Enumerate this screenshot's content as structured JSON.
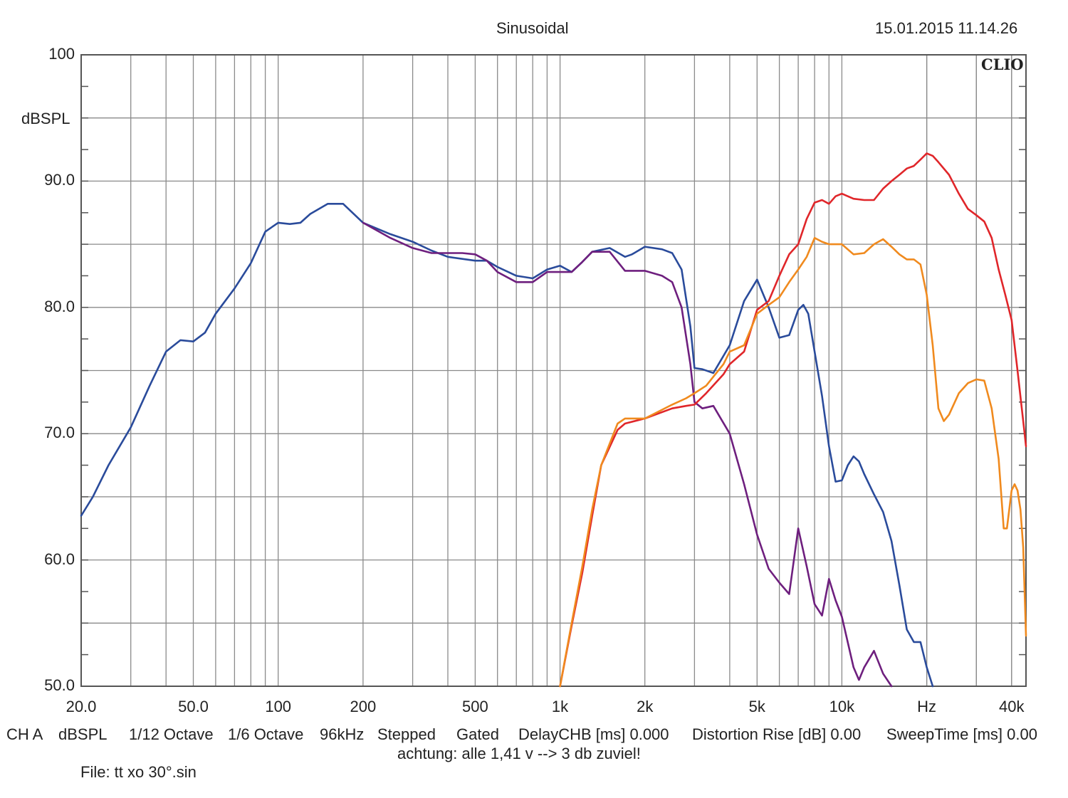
{
  "header": {
    "title": "Sinusoidal",
    "timestamp": "15.01.2015 11.14.26"
  },
  "logo_text": "CLIO",
  "ylabel": "dBSPL",
  "y_tick_labels": [
    "100",
    "90.0",
    "80.0",
    "70.0",
    "60.0",
    "50.0"
  ],
  "x_tick_labels": [
    "20.0",
    "50.0",
    "100",
    "200",
    "500",
    "1k",
    "2k",
    "5k",
    "10k",
    "Hz",
    "40k"
  ],
  "footer": {
    "channel": "CH A",
    "unit": "dBSPL",
    "smoothing1": "1/12 Octave",
    "smoothing2": "1/6 Octave",
    "rate": "96kHz",
    "mode": "Stepped",
    "gating": "Gated",
    "delay": "DelayCHB [ms] 0.000",
    "distortion": "Distortion Rise [dB] 0.00",
    "sweep": "SweepTime [ms] 0.00",
    "note": "achtung: alle 1,41 v --> 3 db zuviel!",
    "file": "File: tt xo 30°.sin"
  },
  "colors": {
    "blue": "#2a4b9b",
    "purple": "#6e1f7e",
    "red": "#e0262a",
    "orange": "#f08a1e",
    "grid": "#8a8a8a",
    "frame": "#555555"
  },
  "chart_data": {
    "type": "line",
    "title": "Sinusoidal",
    "xlabel": "Hz",
    "ylabel": "dBSPL",
    "xscale": "log",
    "xlim": [
      20,
      45000
    ],
    "ylim": [
      50,
      100
    ],
    "grid": true,
    "series": [
      {
        "color": "#2a4b9b",
        "points": [
          [
            20,
            63.5
          ],
          [
            22,
            65
          ],
          [
            25,
            67.5
          ],
          [
            30,
            70.5
          ],
          [
            35,
            73.8
          ],
          [
            40,
            76.5
          ],
          [
            45,
            77.4
          ],
          [
            50,
            77.3
          ],
          [
            55,
            78
          ],
          [
            60,
            79.5
          ],
          [
            70,
            81.5
          ],
          [
            80,
            83.5
          ],
          [
            90,
            86
          ],
          [
            100,
            86.7
          ],
          [
            110,
            86.6
          ],
          [
            120,
            86.7
          ],
          [
            130,
            87.4
          ],
          [
            150,
            88.2
          ],
          [
            170,
            88.2
          ],
          [
            200,
            86.7
          ],
          [
            250,
            85.8
          ],
          [
            300,
            85.2
          ],
          [
            350,
            84.5
          ],
          [
            400,
            84
          ],
          [
            500,
            83.7
          ],
          [
            550,
            83.7
          ],
          [
            600,
            83.2
          ],
          [
            700,
            82.5
          ],
          [
            800,
            82.3
          ],
          [
            900,
            83
          ],
          [
            1000,
            83.3
          ],
          [
            1100,
            82.8
          ],
          [
            1200,
            83.6
          ],
          [
            1300,
            84.4
          ],
          [
            1500,
            84.7
          ],
          [
            1700,
            84
          ],
          [
            1800,
            84.2
          ],
          [
            2000,
            84.8
          ],
          [
            2300,
            84.6
          ],
          [
            2500,
            84.3
          ],
          [
            2700,
            83
          ],
          [
            2900,
            78.5
          ],
          [
            3000,
            75.2
          ],
          [
            3200,
            75.1
          ],
          [
            3500,
            74.8
          ],
          [
            4000,
            77
          ],
          [
            4500,
            80.5
          ],
          [
            5000,
            82.2
          ],
          [
            5500,
            80
          ],
          [
            6000,
            77.6
          ],
          [
            6500,
            77.8
          ],
          [
            7000,
            79.8
          ],
          [
            7300,
            80.2
          ],
          [
            7600,
            79.5
          ],
          [
            8000,
            76.5
          ],
          [
            8500,
            73
          ],
          [
            9000,
            69
          ],
          [
            9500,
            66.2
          ],
          [
            10000,
            66.3
          ],
          [
            10500,
            67.5
          ],
          [
            11000,
            68.2
          ],
          [
            11500,
            67.8
          ],
          [
            12000,
            66.8
          ],
          [
            13000,
            65.2
          ],
          [
            14000,
            63.8
          ],
          [
            15000,
            61.5
          ],
          [
            16000,
            58
          ],
          [
            17000,
            54.5
          ],
          [
            18000,
            53.5
          ],
          [
            19000,
            53.5
          ],
          [
            20000,
            51.5
          ],
          [
            21000,
            50
          ]
        ]
      },
      {
        "color": "#6e1f7e",
        "points": [
          [
            200,
            86.7
          ],
          [
            250,
            85.5
          ],
          [
            300,
            84.7
          ],
          [
            350,
            84.3
          ],
          [
            400,
            84.3
          ],
          [
            450,
            84.3
          ],
          [
            500,
            84.2
          ],
          [
            550,
            83.7
          ],
          [
            600,
            82.8
          ],
          [
            700,
            82
          ],
          [
            800,
            82
          ],
          [
            900,
            82.8
          ],
          [
            1000,
            82.8
          ],
          [
            1100,
            82.8
          ],
          [
            1200,
            83.6
          ],
          [
            1300,
            84.4
          ],
          [
            1500,
            84.4
          ],
          [
            1700,
            82.9
          ],
          [
            2000,
            82.9
          ],
          [
            2300,
            82.5
          ],
          [
            2500,
            82
          ],
          [
            2700,
            80
          ],
          [
            2900,
            75.5
          ],
          [
            3000,
            72.5
          ],
          [
            3200,
            72
          ],
          [
            3500,
            72.2
          ],
          [
            4000,
            70
          ],
          [
            4500,
            66
          ],
          [
            5000,
            62
          ],
          [
            5500,
            59.3
          ],
          [
            6000,
            58.2
          ],
          [
            6500,
            57.3
          ],
          [
            7000,
            62.5
          ],
          [
            7500,
            59.5
          ],
          [
            8000,
            56.5
          ],
          [
            8500,
            55.6
          ],
          [
            9000,
            58.5
          ],
          [
            9500,
            56.8
          ],
          [
            10000,
            55.5
          ],
          [
            11000,
            51.5
          ],
          [
            11500,
            50.5
          ],
          [
            12000,
            51.5
          ],
          [
            13000,
            52.8
          ],
          [
            14000,
            51
          ],
          [
            15000,
            50
          ]
        ]
      },
      {
        "color": "#e0262a",
        "points": [
          [
            1000,
            50
          ],
          [
            1100,
            54.8
          ],
          [
            1200,
            59
          ],
          [
            1300,
            63.5
          ],
          [
            1400,
            67.5
          ],
          [
            1600,
            70.3
          ],
          [
            1700,
            70.8
          ],
          [
            2000,
            71.2
          ],
          [
            2500,
            72
          ],
          [
            2800,
            72.2
          ],
          [
            3000,
            72.3
          ],
          [
            3300,
            73.2
          ],
          [
            3800,
            74.7
          ],
          [
            4000,
            75.5
          ],
          [
            4500,
            76.5
          ],
          [
            5000,
            79.8
          ],
          [
            5500,
            80.5
          ],
          [
            6000,
            82.5
          ],
          [
            6500,
            84.2
          ],
          [
            7000,
            85
          ],
          [
            7500,
            87
          ],
          [
            8000,
            88.3
          ],
          [
            8500,
            88.5
          ],
          [
            9000,
            88.2
          ],
          [
            9500,
            88.8
          ],
          [
            10000,
            89
          ],
          [
            11000,
            88.6
          ],
          [
            12000,
            88.5
          ],
          [
            13000,
            88.5
          ],
          [
            14000,
            89.4
          ],
          [
            15000,
            90
          ],
          [
            16000,
            90.5
          ],
          [
            17000,
            91
          ],
          [
            18000,
            91.2
          ],
          [
            19000,
            91.7
          ],
          [
            20000,
            92.2
          ],
          [
            21000,
            92
          ],
          [
            22000,
            91.5
          ],
          [
            24000,
            90.5
          ],
          [
            26000,
            89
          ],
          [
            28000,
            87.8
          ],
          [
            30000,
            87.3
          ],
          [
            32000,
            86.8
          ],
          [
            34000,
            85.5
          ],
          [
            36000,
            83
          ],
          [
            38000,
            81
          ],
          [
            40000,
            79
          ],
          [
            42000,
            75
          ],
          [
            44000,
            71
          ],
          [
            45000,
            69
          ]
        ]
      },
      {
        "color": "#f08a1e",
        "points": [
          [
            1000,
            50
          ],
          [
            1100,
            55
          ],
          [
            1200,
            59.5
          ],
          [
            1300,
            64
          ],
          [
            1400,
            67.5
          ],
          [
            1600,
            70.8
          ],
          [
            1700,
            71.2
          ],
          [
            2000,
            71.2
          ],
          [
            2500,
            72.3
          ],
          [
            2800,
            72.8
          ],
          [
            3000,
            73.2
          ],
          [
            3300,
            73.8
          ],
          [
            3800,
            75.5
          ],
          [
            4000,
            76.5
          ],
          [
            4500,
            77
          ],
          [
            5000,
            79.5
          ],
          [
            5500,
            80.2
          ],
          [
            6000,
            80.8
          ],
          [
            6500,
            82
          ],
          [
            7000,
            83
          ],
          [
            7500,
            84
          ],
          [
            8000,
            85.5
          ],
          [
            8500,
            85.2
          ],
          [
            9000,
            85
          ],
          [
            10000,
            85
          ],
          [
            11000,
            84.2
          ],
          [
            12000,
            84.3
          ],
          [
            13000,
            85
          ],
          [
            14000,
            85.4
          ],
          [
            15000,
            84.8
          ],
          [
            16000,
            84.2
          ],
          [
            17000,
            83.8
          ],
          [
            18000,
            83.8
          ],
          [
            19000,
            83.4
          ],
          [
            20000,
            81
          ],
          [
            21000,
            77
          ],
          [
            22000,
            72
          ],
          [
            23000,
            71
          ],
          [
            24000,
            71.5
          ],
          [
            26000,
            73.2
          ],
          [
            28000,
            74
          ],
          [
            30000,
            74.3
          ],
          [
            32000,
            74.2
          ],
          [
            34000,
            72
          ],
          [
            36000,
            68
          ],
          [
            37500,
            62.5
          ],
          [
            38500,
            62.5
          ],
          [
            40000,
            65.5
          ],
          [
            41000,
            66
          ],
          [
            42000,
            65.5
          ],
          [
            43000,
            64
          ],
          [
            44000,
            61
          ],
          [
            45000,
            54
          ]
        ]
      }
    ]
  }
}
